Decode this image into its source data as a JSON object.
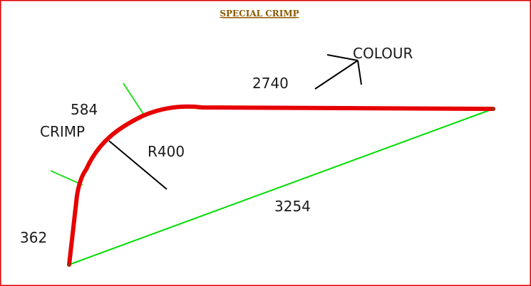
{
  "title": "SPECIAL CRIMP",
  "labels": {
    "top_length": "2740",
    "colour": "COLOUR",
    "crimp_length": "584",
    "crimp": "CRIMP",
    "radius": "R400",
    "diagonal": "3254",
    "bottom_length": "362"
  },
  "colors": {
    "border": "#e00000",
    "profile": "#e60000",
    "dimension": "#00dd00",
    "leader": "#000000",
    "title": "#8a5a00"
  }
}
